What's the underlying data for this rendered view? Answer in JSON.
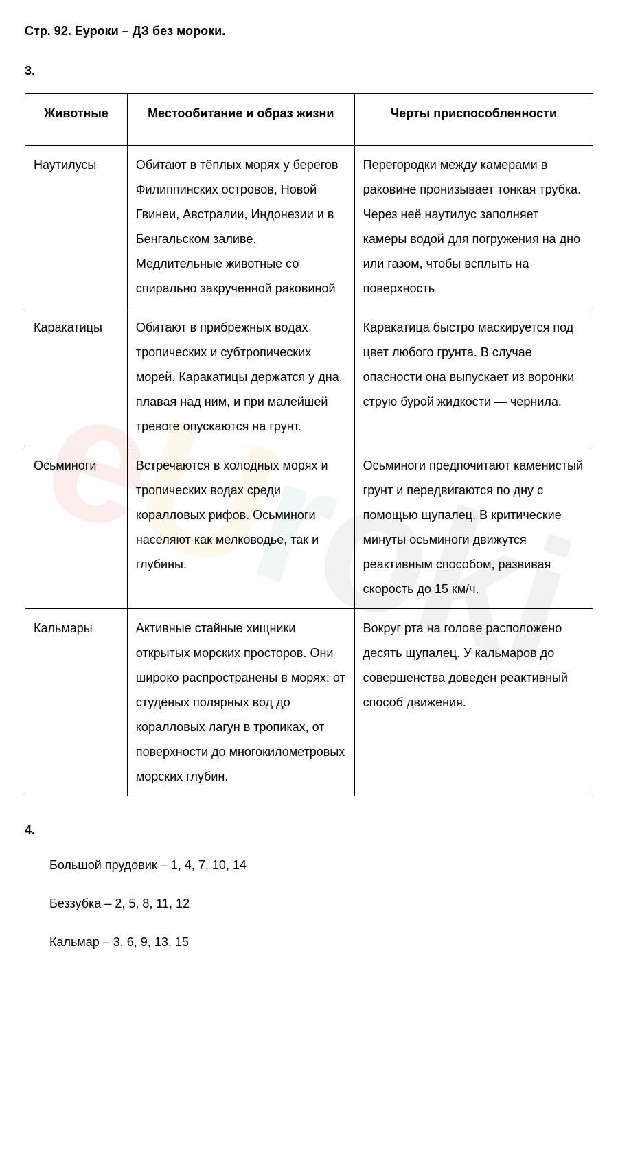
{
  "page_title": "Стр. 92. Еуроки – ДЗ без мороки.",
  "section3": {
    "number": "3.",
    "headers": {
      "col1": "Животные",
      "col2": "Местообитание и образ жизни",
      "col3": "Черты приспособленности"
    },
    "rows": [
      {
        "animal": "Наутилусы",
        "habitat": "Обитают в тёплых морях у берегов Филиппинских островов, Новой Гвинеи, Австралии, Индонезии и в Бенгальском заливе. Медлительные животные со спирально закрученной раковиной",
        "traits": "Перегородки между камерами в раковине пронизывает тонкая трубка. Через неё наутилус заполняет камеры водой для погружения на дно или газом, чтобы всплыть на поверхность"
      },
      {
        "animal": "Каракатицы",
        "habitat": "Обитают в прибрежных водах тропических и субтропических морей. Каракатицы держатся у дна, плавая над ним, и при малейшей тревоге опускаются на грунт.",
        "traits": "Каракатица быстро маскируется под цвет любого грунта. В случае опасности она выпускает из воронки струю бурой жидкости — чернила."
      },
      {
        "animal": "Осьминоги",
        "habitat": "Встречаются в холодных морях и тропических водах среди коралловых рифов. Осьминоги населяют как мелководье, так и глубины.",
        "traits": "Осьминоги предпочитают каменистый грунт и передвигаются по дну с помощью щупалец. В критические минуты осьминоги движутся реактивным способом, развивая скорость до 15 км/ч."
      },
      {
        "animal": "Кальмары",
        "habitat": "Активные стайные хищники открытых морских просторов. Они широко распространены в морях: от студёных полярных вод до коралловых лагун в тропиках, от поверхности до многокилометровых морских глубин.",
        "traits": "Вокруг рта на голове расположено десять щупалец. У кальмаров до совершенства доведён реактивный способ движения."
      }
    ]
  },
  "section4": {
    "number": "4.",
    "lines": [
      "Большой прудовик –  1, 4, 7, 10, 14",
      "Беззубка – 2, 5, 8, 11, 12",
      "Кальмар – 3, 6, 9, 13, 15"
    ]
  },
  "watermark": {
    "e": "e",
    "u": "U",
    "r": "r",
    "o": "o",
    "k": "k",
    "i": "i"
  }
}
